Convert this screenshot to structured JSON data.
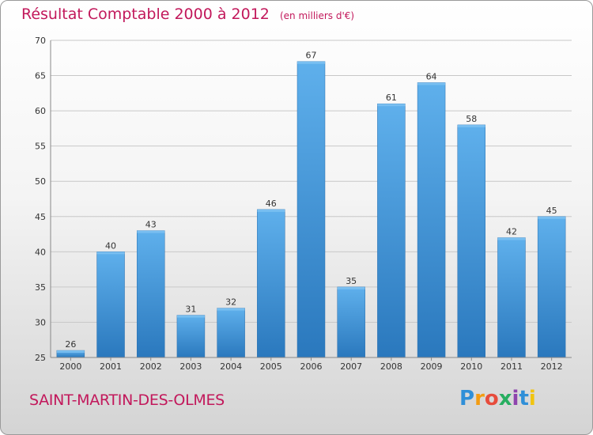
{
  "title": "Résultat Comptable 2000 à 2012",
  "unit": "(en milliers d'€)",
  "commune": "SAINT-MARTIN-DES-OLMES",
  "logo_text": "Proxiti",
  "chart_data": {
    "type": "bar",
    "title": "Résultat Comptable 2000 à 2012",
    "subtitle": "(en milliers d'€)",
    "xlabel": "",
    "ylabel": "",
    "ylim": [
      25,
      70
    ],
    "yticks": [
      25,
      30,
      35,
      40,
      45,
      50,
      55,
      60,
      65,
      70
    ],
    "grid": true,
    "categories": [
      "2000",
      "2001",
      "2002",
      "2003",
      "2004",
      "2005",
      "2006",
      "2007",
      "2008",
      "2009",
      "2010",
      "2011",
      "2012"
    ],
    "values": [
      26,
      40,
      43,
      31,
      32,
      46,
      67,
      35,
      61,
      64,
      58,
      42,
      45
    ],
    "bar_color": "#3d8fd1"
  }
}
